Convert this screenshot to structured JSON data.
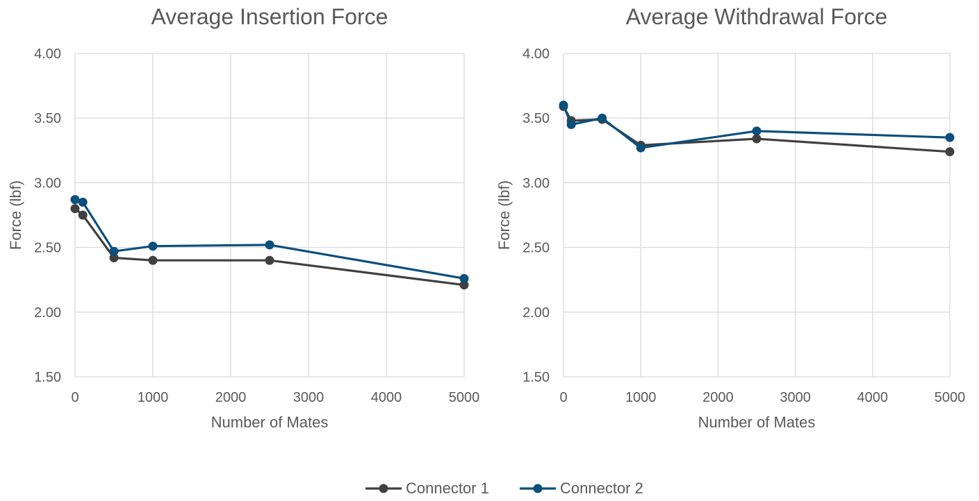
{
  "chart_data": [
    {
      "type": "line",
      "title": "Average Insertion Force",
      "xlabel": "Number of Mates",
      "ylabel": "Force (lbf)",
      "xlim": [
        0,
        5000
      ],
      "ylim": [
        1.5,
        4.0
      ],
      "xticks": [
        0,
        1000,
        2000,
        3000,
        4000,
        5000
      ],
      "yticks": [
        "1.50",
        "2.00",
        "2.50",
        "3.00",
        "3.50",
        "4.00"
      ],
      "grid": true,
      "series": [
        {
          "name": "Connector 1",
          "x": [
            0,
            100,
            500,
            1000,
            2500,
            5000
          ],
          "y": [
            2.8,
            2.75,
            2.42,
            2.4,
            2.4,
            2.21
          ]
        },
        {
          "name": "Connector 2",
          "x": [
            0,
            100,
            500,
            1000,
            2500,
            5000
          ],
          "y": [
            2.87,
            2.85,
            2.47,
            2.51,
            2.52,
            2.26
          ]
        }
      ]
    },
    {
      "type": "line",
      "title": "Average Withdrawal Force",
      "xlabel": "Number of Mates",
      "ylabel": "Force (lbf)",
      "xlim": [
        0,
        5000
      ],
      "ylim": [
        1.5,
        4.0
      ],
      "xticks": [
        0,
        1000,
        2000,
        3000,
        4000,
        5000
      ],
      "yticks": [
        "1.50",
        "2.00",
        "2.50",
        "3.00",
        "3.50",
        "4.00"
      ],
      "grid": true,
      "series": [
        {
          "name": "Connector 1",
          "x": [
            0,
            100,
            500,
            1000,
            2500,
            5000
          ],
          "y": [
            3.59,
            3.48,
            3.49,
            3.29,
            3.34,
            3.24
          ]
        },
        {
          "name": "Connector 2",
          "x": [
            0,
            100,
            500,
            1000,
            2500,
            5000
          ],
          "y": [
            3.6,
            3.45,
            3.5,
            3.27,
            3.4,
            3.35
          ]
        }
      ]
    }
  ],
  "legend": {
    "position": "bottom-center",
    "items": [
      {
        "name": "Connector 1",
        "color": "#404040"
      },
      {
        "name": "Connector 2",
        "color": "#0b4f7c"
      }
    ]
  },
  "colors": {
    "series": [
      "#404040",
      "#0b4f7c"
    ],
    "grid": "#d9d9d9",
    "text": "#595959"
  }
}
